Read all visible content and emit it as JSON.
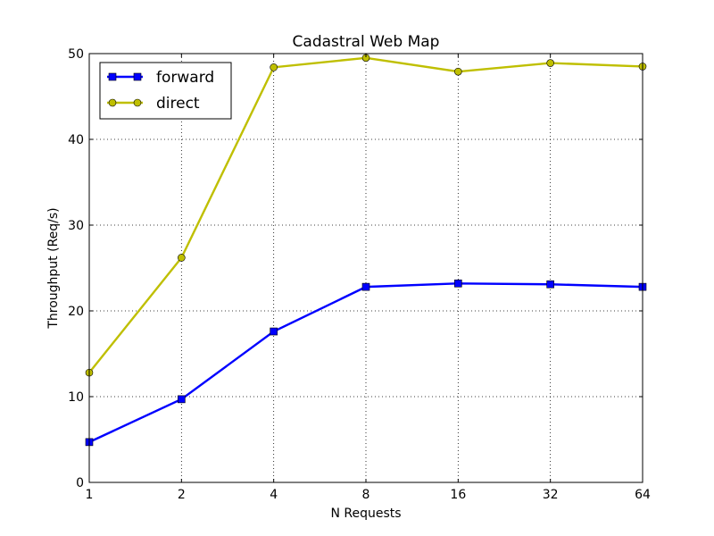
{
  "chart_data": {
    "type": "line",
    "title": "Cadastral Web Map",
    "xlabel": "N Requests",
    "ylabel": "Throughput (Req/s)",
    "x": [
      1,
      2,
      4,
      8,
      16,
      32,
      64
    ],
    "x_tick_labels": [
      "1",
      "2",
      "4",
      "8",
      "16",
      "32",
      "64"
    ],
    "x_scale": "log2",
    "ylim": [
      0,
      50
    ],
    "y_ticks": [
      0,
      10,
      20,
      30,
      40,
      50
    ],
    "grid": true,
    "legend_position": "top-left",
    "series": [
      {
        "name": "forward",
        "color": "#0000ff",
        "marker": "square",
        "values": [
          4.7,
          9.7,
          17.6,
          22.8,
          23.2,
          23.1,
          22.8
        ]
      },
      {
        "name": "direct",
        "color": "#bfbf00",
        "marker": "circle",
        "values": [
          12.8,
          26.2,
          48.4,
          49.5,
          47.9,
          48.9,
          48.5
        ]
      }
    ]
  }
}
